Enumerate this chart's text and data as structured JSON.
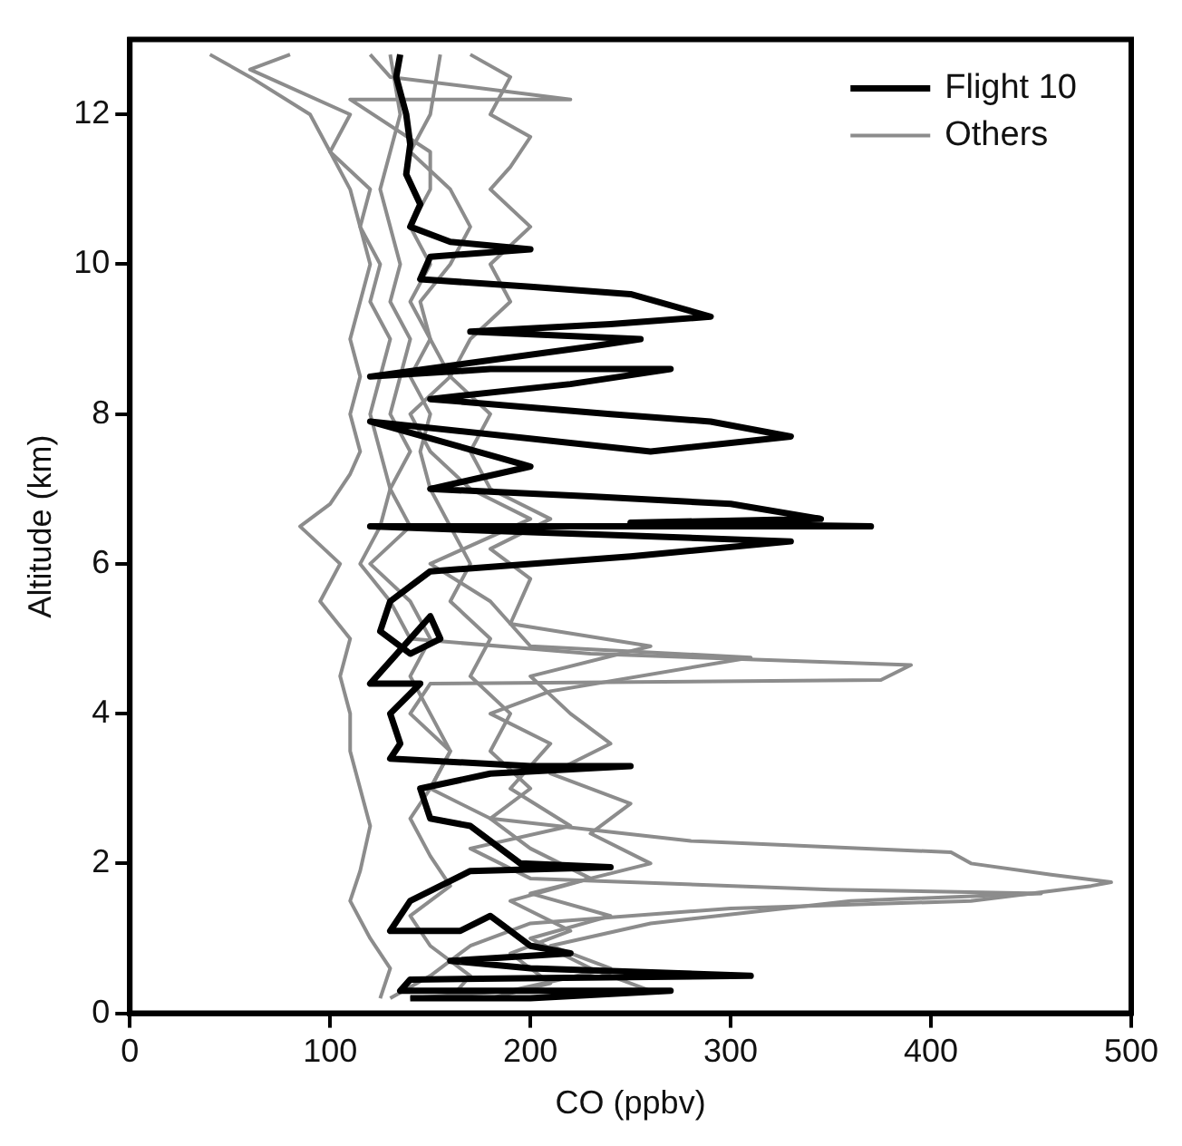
{
  "chart_data": {
    "type": "line",
    "xlabel": "CO (ppbv)",
    "ylabel": "Altitude (km)",
    "xlim": [
      0,
      500
    ],
    "xticks": [
      0,
      100,
      200,
      300,
      400,
      500
    ],
    "ylim": [
      0,
      13
    ],
    "yticks": [
      0,
      2,
      4,
      6,
      8,
      10,
      12
    ],
    "grid": false,
    "legend": "top right",
    "marker": "none",
    "line_style": "solid",
    "series": [
      {
        "name": "Flight 10",
        "color": "#000000",
        "x": [
          135,
          133,
          138,
          140,
          138,
          145,
          140,
          160,
          200,
          150,
          145,
          200,
          250,
          290,
          240,
          170,
          255,
          230,
          120,
          180,
          270,
          220,
          150,
          240,
          290,
          330,
          260,
          120,
          200,
          150,
          230,
          300,
          345,
          250,
          370,
          200,
          120,
          330,
          250,
          150,
          130,
          125,
          140,
          155,
          150,
          120,
          145,
          130,
          135,
          130,
          200,
          250,
          180,
          145,
          150,
          170,
          185,
          195,
          240,
          170,
          140,
          130,
          165,
          180,
          200,
          220,
          160,
          200,
          310,
          140,
          135,
          270,
          200,
          140
        ],
        "values": [
          12.8,
          12.5,
          12.0,
          11.6,
          11.2,
          10.8,
          10.5,
          10.3,
          10.2,
          10.1,
          9.8,
          9.7,
          9.6,
          9.3,
          9.2,
          9.1,
          9.0,
          8.9,
          8.5,
          8.6,
          8.6,
          8.4,
          8.2,
          8.0,
          7.9,
          7.7,
          7.5,
          7.9,
          7.3,
          7.0,
          6.9,
          6.8,
          6.6,
          6.55,
          6.5,
          6.5,
          6.5,
          6.3,
          6.1,
          5.9,
          5.5,
          5.1,
          4.8,
          5.0,
          5.3,
          4.4,
          4.4,
          4.0,
          3.6,
          3.4,
          3.3,
          3.3,
          3.2,
          3.0,
          2.6,
          2.5,
          2.2,
          2.0,
          1.95,
          1.9,
          1.5,
          1.1,
          1.1,
          1.3,
          0.9,
          0.8,
          0.7,
          0.6,
          0.5,
          0.45,
          0.3,
          0.3,
          0.2,
          0.2
        ]
      },
      {
        "name": "Others",
        "color": "#8c8c8c",
        "x": [
          130,
          150,
          170,
          200,
          300,
          420,
          480,
          490,
          460,
          420,
          410,
          280,
          180,
          150,
          160,
          140,
          150,
          375,
          390,
          230,
          140,
          130,
          115,
          125,
          130,
          125,
          120,
          125,
          130,
          120,
          125,
          115,
          110,
          100,
          90,
          60,
          40
        ],
        "values": [
          0.2,
          0.5,
          0.9,
          1.2,
          1.4,
          1.5,
          1.7,
          1.75,
          1.85,
          2.0,
          2.15,
          2.3,
          2.6,
          3.0,
          3.5,
          4.0,
          4.4,
          4.45,
          4.65,
          4.8,
          5.0,
          5.5,
          6.0,
          6.5,
          7.0,
          7.5,
          8.0,
          8.5,
          9.0,
          9.5,
          10.0,
          10.5,
          11.0,
          11.5,
          12.0,
          12.5,
          12.8
        ]
      },
      {
        "color": "#8c8c8c",
        "x": [
          140,
          190,
          240,
          210,
          260,
          360,
          455,
          350,
          200,
          170,
          220,
          190,
          210,
          180,
          210,
          310,
          200,
          180,
          150,
          200,
          170,
          150,
          140,
          160,
          150,
          140,
          150,
          140,
          150,
          150,
          110,
          220,
          130,
          120
        ],
        "values": [
          0.2,
          0.3,
          0.6,
          0.9,
          1.2,
          1.5,
          1.6,
          1.65,
          1.8,
          2.2,
          2.5,
          3.0,
          3.6,
          4.0,
          4.3,
          4.75,
          4.9,
          5.5,
          6.0,
          6.6,
          7.0,
          7.5,
          8.0,
          8.5,
          9.0,
          9.5,
          10.0,
          10.5,
          11.0,
          11.5,
          12.2,
          12.2,
          12.5,
          12.8
        ]
      },
      {
        "color": "#8c8c8c",
        "x": [
          125,
          130,
          120,
          110,
          115,
          120,
          115,
          110,
          110,
          105,
          110,
          95,
          105,
          85,
          100,
          110,
          115,
          110,
          115,
          110,
          115,
          120,
          115,
          120,
          100,
          110,
          60,
          80
        ],
        "values": [
          0.2,
          0.6,
          1.0,
          1.5,
          1.9,
          2.5,
          3.0,
          3.5,
          4.0,
          4.5,
          5.0,
          5.5,
          6.0,
          6.5,
          6.8,
          7.2,
          7.5,
          8.0,
          8.5,
          9.0,
          9.5,
          10.0,
          10.5,
          11.0,
          11.5,
          12.0,
          12.6,
          12.8
        ]
      },
      {
        "color": "#8c8c8c",
        "x": [
          200,
          260,
          230,
          200,
          240,
          200,
          260,
          230,
          250,
          210,
          240,
          220,
          200,
          260,
          190,
          200,
          180,
          210,
          180,
          170,
          180,
          160,
          170,
          190,
          180,
          200,
          180,
          190,
          200,
          180,
          190,
          170
        ],
        "values": [
          0.2,
          0.3,
          0.6,
          1.0,
          1.3,
          1.6,
          2.0,
          2.4,
          2.8,
          3.2,
          3.6,
          4.0,
          4.5,
          4.9,
          5.2,
          5.8,
          6.2,
          6.6,
          7.0,
          7.5,
          8.0,
          8.5,
          9.0,
          9.5,
          10.0,
          10.5,
          11.0,
          11.3,
          11.7,
          12.0,
          12.5,
          12.8
        ]
      },
      {
        "color": "#8c8c8c",
        "x": [
          160,
          170,
          150,
          140,
          160,
          150,
          140,
          150,
          160,
          150,
          140,
          150,
          140,
          120,
          140,
          130,
          140,
          130,
          135,
          140,
          130,
          135,
          130,
          125,
          130,
          135,
          130
        ],
        "values": [
          0.2,
          0.5,
          0.9,
          1.3,
          1.7,
          2.1,
          2.6,
          3.0,
          3.5,
          4.0,
          4.5,
          5.0,
          5.5,
          6.0,
          6.5,
          7.0,
          7.5,
          8.0,
          8.5,
          9.0,
          9.5,
          10.0,
          10.5,
          11.0,
          11.5,
          12.0,
          12.8
        ]
      },
      {
        "color": "#8c8c8c",
        "x": [
          180,
          210,
          190,
          220,
          190,
          230,
          200,
          180,
          200,
          180,
          190,
          170,
          180,
          160,
          170,
          160,
          150,
          145,
          150,
          140,
          150,
          145,
          160,
          170,
          160,
          140,
          150,
          155
        ],
        "values": [
          0.2,
          0.4,
          0.8,
          1.1,
          1.5,
          1.8,
          2.2,
          2.6,
          3.0,
          3.5,
          4.0,
          4.5,
          5.0,
          5.5,
          6.0,
          6.5,
          7.0,
          7.5,
          8.0,
          8.5,
          9.0,
          9.5,
          10.0,
          10.5,
          11.0,
          11.5,
          12.0,
          12.8
        ]
      }
    ]
  }
}
